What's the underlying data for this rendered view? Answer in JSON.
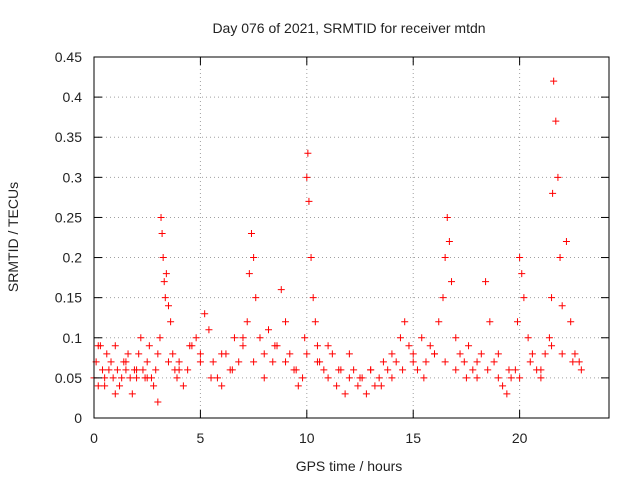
{
  "chart_data": {
    "type": "scatter",
    "title": "Day 076 of 2021, SRMTID for receiver mtdn",
    "xlabel": "GPS time / hours",
    "ylabel": "SRMTID / TECUs",
    "xlim": [
      0,
      24.2
    ],
    "ylim": [
      0,
      0.45
    ],
    "x_ticks": [
      0,
      5,
      10,
      15,
      20
    ],
    "x_tick_labels": [
      "0",
      "5",
      "10",
      "15",
      "20"
    ],
    "y_ticks": [
      0,
      0.05,
      0.1,
      0.15,
      0.2,
      0.25,
      0.3,
      0.35,
      0.4,
      0.45
    ],
    "y_tick_labels": [
      "0",
      "0.05",
      "0.1",
      "0.15",
      "0.2",
      "0.25",
      "0.3",
      "0.35",
      "0.4",
      "0.45"
    ],
    "grid": true,
    "legend": "none",
    "marker": "plus",
    "color": "#ff0000",
    "series": [
      {
        "name": "SRMTID",
        "x": [
          0.0,
          0.1,
          0.2,
          0.3,
          0.4,
          0.5,
          0.6,
          0.7,
          0.8,
          0.9,
          1.0,
          1.1,
          1.2,
          1.3,
          1.4,
          1.5,
          1.6,
          1.7,
          1.8,
          1.9,
          2.0,
          2.1,
          2.2,
          2.3,
          2.4,
          2.5,
          2.6,
          2.7,
          2.8,
          2.9,
          3.0,
          3.1,
          3.15,
          3.2,
          3.25,
          3.3,
          3.35,
          3.4,
          3.5,
          3.6,
          3.7,
          3.8,
          3.9,
          4.0,
          4.2,
          4.4,
          4.6,
          4.8,
          5.0,
          5.2,
          5.4,
          5.6,
          5.8,
          6.0,
          6.2,
          6.4,
          6.6,
          6.8,
          7.0,
          7.2,
          7.3,
          7.4,
          7.5,
          7.6,
          7.8,
          8.0,
          8.2,
          8.4,
          8.6,
          8.8,
          9.0,
          9.2,
          9.4,
          9.6,
          9.8,
          9.9,
          10.0,
          10.05,
          10.1,
          10.2,
          10.3,
          10.4,
          10.5,
          10.6,
          10.8,
          11.0,
          11.2,
          11.4,
          11.6,
          11.8,
          12.0,
          12.2,
          12.4,
          12.6,
          12.8,
          13.0,
          13.2,
          13.4,
          13.6,
          13.8,
          14.0,
          14.2,
          14.4,
          14.6,
          14.8,
          15.0,
          15.2,
          15.4,
          15.6,
          15.8,
          16.0,
          16.2,
          16.4,
          16.5,
          16.6,
          16.7,
          16.8,
          17.0,
          17.2,
          17.4,
          17.6,
          17.8,
          18.0,
          18.2,
          18.4,
          18.6,
          18.8,
          19.0,
          19.2,
          19.4,
          19.6,
          19.8,
          19.9,
          20.0,
          20.1,
          20.2,
          20.4,
          20.6,
          20.8,
          21.0,
          21.2,
          21.4,
          21.5,
          21.55,
          21.6,
          21.7,
          21.8,
          21.9,
          22.0,
          22.2,
          22.4,
          22.6,
          22.8,
          22.9,
          0.2,
          0.5,
          1.0,
          1.5,
          2.0,
          2.5,
          3.0,
          3.5,
          4.0,
          4.5,
          5.0,
          5.5,
          6.0,
          6.5,
          7.0,
          7.5,
          8.0,
          8.5,
          9.0,
          9.5,
          10.0,
          10.5,
          11.0,
          11.5,
          12.0,
          12.5,
          13.0,
          13.5,
          14.0,
          14.5,
          15.0,
          15.5,
          16.0,
          16.5,
          17.0,
          17.5,
          18.0,
          18.5,
          19.0,
          19.5,
          20.0,
          20.5,
          21.0,
          21.5,
          22.0,
          22.5
        ],
        "y": [
          0.05,
          0.07,
          0.04,
          0.09,
          0.06,
          0.05,
          0.08,
          0.06,
          0.07,
          0.05,
          0.09,
          0.06,
          0.04,
          0.05,
          0.07,
          0.06,
          0.08,
          0.05,
          0.03,
          0.06,
          0.05,
          0.08,
          0.1,
          0.06,
          0.05,
          0.07,
          0.09,
          0.05,
          0.04,
          0.06,
          0.02,
          0.1,
          0.25,
          0.23,
          0.2,
          0.17,
          0.15,
          0.18,
          0.14,
          0.12,
          0.08,
          0.06,
          0.05,
          0.07,
          0.04,
          0.06,
          0.09,
          0.1,
          0.08,
          0.13,
          0.11,
          0.07,
          0.05,
          0.04,
          0.08,
          0.06,
          0.1,
          0.07,
          0.09,
          0.12,
          0.18,
          0.23,
          0.2,
          0.15,
          0.1,
          0.08,
          0.11,
          0.07,
          0.09,
          0.16,
          0.12,
          0.08,
          0.06,
          0.04,
          0.05,
          0.1,
          0.3,
          0.33,
          0.27,
          0.2,
          0.15,
          0.12,
          0.09,
          0.07,
          0.06,
          0.05,
          0.08,
          0.04,
          0.06,
          0.03,
          0.05,
          0.06,
          0.04,
          0.05,
          0.03,
          0.06,
          0.04,
          0.05,
          0.07,
          0.06,
          0.08,
          0.07,
          0.1,
          0.12,
          0.09,
          0.08,
          0.06,
          0.1,
          0.07,
          0.09,
          0.08,
          0.12,
          0.15,
          0.2,
          0.25,
          0.22,
          0.17,
          0.1,
          0.08,
          0.07,
          0.09,
          0.06,
          0.05,
          0.08,
          0.17,
          0.12,
          0.07,
          0.05,
          0.04,
          0.03,
          0.05,
          0.06,
          0.12,
          0.2,
          0.18,
          0.15,
          0.1,
          0.08,
          0.06,
          0.05,
          0.08,
          0.1,
          0.15,
          0.28,
          0.42,
          0.37,
          0.3,
          0.2,
          0.14,
          0.22,
          0.12,
          0.08,
          0.07,
          0.06,
          0.09,
          0.04,
          0.03,
          0.07,
          0.06,
          0.05,
          0.08,
          0.07,
          0.06,
          0.09,
          0.07,
          0.05,
          0.08,
          0.06,
          0.1,
          0.07,
          0.05,
          0.09,
          0.07,
          0.06,
          0.08,
          0.07,
          0.09,
          0.06,
          0.08,
          0.05,
          0.06,
          0.04,
          0.05,
          0.06,
          0.07,
          0.05,
          0.08,
          0.07,
          0.06,
          0.05,
          0.07,
          0.06,
          0.08,
          0.06,
          0.05,
          0.07,
          0.06,
          0.09,
          0.08,
          0.07
        ]
      }
    ]
  }
}
